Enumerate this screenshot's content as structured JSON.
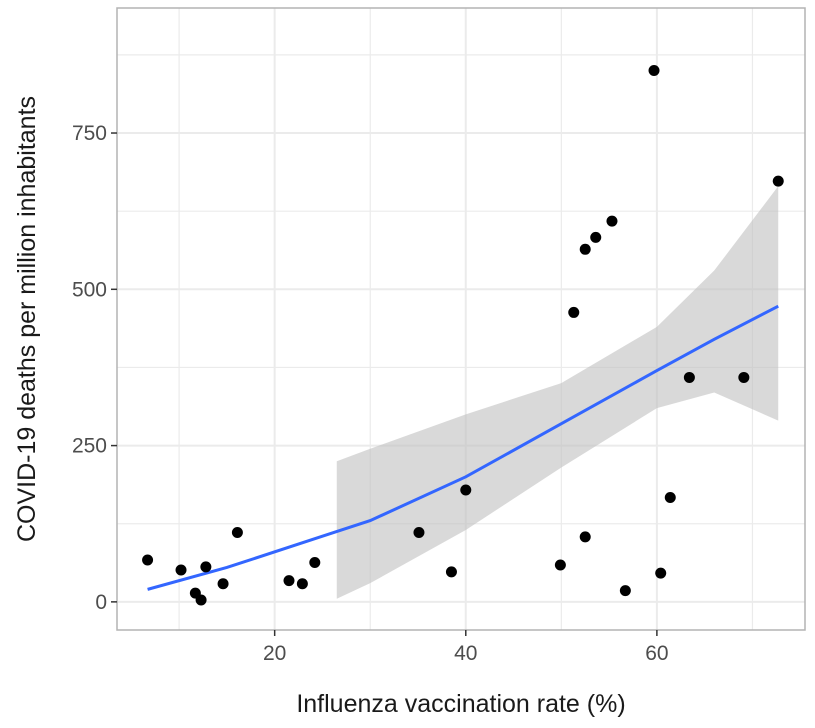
{
  "chart_data": {
    "type": "scatter",
    "title": "",
    "xlabel": "Influenza vaccination rate (%)",
    "ylabel": "COVID-19 deaths per million inhabitants",
    "xlim": [
      3.5,
      75.5
    ],
    "ylim": [
      -45,
      950
    ],
    "x_ticks": [
      20,
      40,
      60
    ],
    "y_ticks": [
      0,
      250,
      500,
      750
    ],
    "x_tick_labels": [
      "20",
      "40",
      "60"
    ],
    "y_tick_labels": [
      "0",
      "250",
      "500",
      "750"
    ],
    "grid": true,
    "points": [
      {
        "x": 6.7,
        "y": 67
      },
      {
        "x": 10.2,
        "y": 51
      },
      {
        "x": 11.7,
        "y": 14
      },
      {
        "x": 12.3,
        "y": 3
      },
      {
        "x": 12.8,
        "y": 56
      },
      {
        "x": 14.6,
        "y": 29
      },
      {
        "x": 16.1,
        "y": 111
      },
      {
        "x": 21.5,
        "y": 34
      },
      {
        "x": 22.9,
        "y": 29
      },
      {
        "x": 24.2,
        "y": 63
      },
      {
        "x": 35.1,
        "y": 111
      },
      {
        "x": 38.5,
        "y": 48
      },
      {
        "x": 40.0,
        "y": 179
      },
      {
        "x": 49.9,
        "y": 59
      },
      {
        "x": 51.3,
        "y": 463
      },
      {
        "x": 52.5,
        "y": 564
      },
      {
        "x": 53.6,
        "y": 583
      },
      {
        "x": 55.3,
        "y": 609
      },
      {
        "x": 52.5,
        "y": 104
      },
      {
        "x": 56.7,
        "y": 18
      },
      {
        "x": 59.7,
        "y": 850
      },
      {
        "x": 60.4,
        "y": 46
      },
      {
        "x": 61.4,
        "y": 167
      },
      {
        "x": 63.4,
        "y": 359
      },
      {
        "x": 69.1,
        "y": 359
      },
      {
        "x": 72.7,
        "y": 673
      }
    ],
    "trend_line": {
      "color": "#3366ff",
      "x": [
        6.7,
        15,
        25,
        30,
        40,
        50,
        60,
        66,
        72.7
      ],
      "y": [
        20,
        55,
        105,
        130,
        200,
        285,
        370,
        420,
        473
      ]
    },
    "confidence_band": {
      "color": "#bfbfbf",
      "x": [
        26.5,
        30,
        40,
        50,
        60,
        66,
        72.7
      ],
      "upper": [
        225,
        245,
        300,
        350,
        440,
        530,
        665
      ],
      "lower": [
        5,
        30,
        115,
        215,
        310,
        335,
        290
      ]
    },
    "point_color": "#000000"
  }
}
